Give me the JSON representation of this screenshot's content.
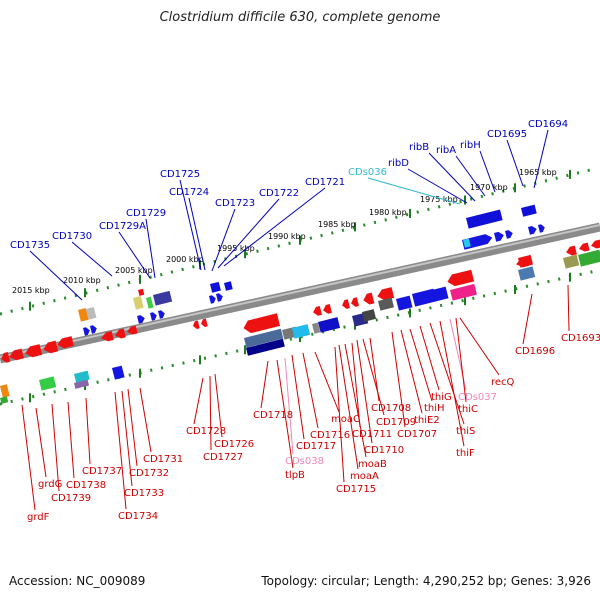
{
  "title": "Clostridium difficile 630, complete genome",
  "footer": {
    "accession": "Accession: NC_009089",
    "stats": "Topology: circular; Length: 4,290,252 bp; Genes: 3,926"
  },
  "colors": {
    "forward_label": "#0000bb",
    "reverse_label": "#cc0000",
    "forward_rna_label": "#33bbcc",
    "reverse_rna_label": "#ee88bb"
  },
  "ticks": [
    "2015 kbp",
    "2010 kbp",
    "2005 kbp",
    "2000 kbp",
    "1995 kbp",
    "1990 kbp",
    "1985 kbp",
    "1980 kbp",
    "1975 kbp",
    "1970 kbp",
    "1965 kbp"
  ],
  "forward_labels": [
    "CD1735",
    "CD1730",
    "CD1729A",
    "CD1729",
    "CD1725",
    "CD1724",
    "CD1723",
    "CD1722",
    "CD1721",
    "CDs036",
    "ribD",
    "ribB",
    "ribA",
    "ribH",
    "CD1695",
    "CD1694"
  ],
  "reverse_labels": [
    "grdF",
    "grdG",
    "CD1739",
    "CD1738",
    "CD1737",
    "CD1734",
    "CD1733",
    "CD1732",
    "CD1731",
    "CD1728",
    "CD1727",
    "CD1726",
    "CD1718",
    "tlpB",
    "CDs038",
    "CD1717",
    "CD1716",
    "moaC",
    "CD1715",
    "moaA",
    "moaB",
    "CD1711",
    "CD1710",
    "CD1709",
    "CD1708",
    "CD1707",
    "thiE2",
    "thiH",
    "thiG",
    "thiS",
    "thiF",
    "CDs037",
    "thiC",
    "recQ",
    "CD1696",
    "CD1693"
  ]
}
